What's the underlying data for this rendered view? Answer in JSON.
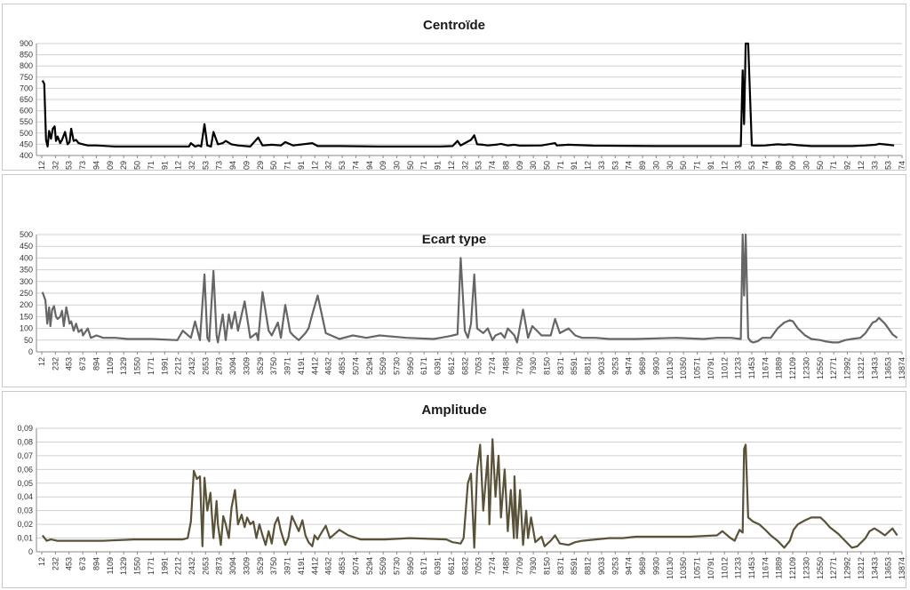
{
  "x_tick_labels": [
    "12",
    "232",
    "453",
    "673",
    "894",
    "1109",
    "1329",
    "1550",
    "1771",
    "1991",
    "2212",
    "2432",
    "2653",
    "2873",
    "3094",
    "3309",
    "3529",
    "3750",
    "3971",
    "4191",
    "4412",
    "4632",
    "4853",
    "5074",
    "5294",
    "5509",
    "5730",
    "5950",
    "6171",
    "6391",
    "6612",
    "6832",
    "7053",
    "7274",
    "7488",
    "7709",
    "7930",
    "8150",
    "8371",
    "8591",
    "8812",
    "9033",
    "9253",
    "9474",
    "9689",
    "9930",
    "10130",
    "10350",
    "10571",
    "10791",
    "11012",
    "11233",
    "11453",
    "11674",
    "11889",
    "12109",
    "12330",
    "12550",
    "12771",
    "12992",
    "13212",
    "13433",
    "13653",
    "13874"
  ],
  "chart_data": [
    {
      "type": "line",
      "title": "Centroïde",
      "xlabel": "",
      "ylabel": "",
      "ylim": [
        400,
        900
      ],
      "yticks": [
        "400",
        "450",
        "500",
        "550",
        "600",
        "650",
        "700",
        "750",
        "800",
        "850",
        "900"
      ],
      "grid": true,
      "color": "#000000",
      "x": [
        12,
        40,
        70,
        95,
        120,
        150,
        180,
        210,
        232,
        260,
        300,
        330,
        380,
        420,
        453,
        480,
        520,
        560,
        600,
        673,
        750,
        894,
        1200,
        1800,
        2300,
        2400,
        2432,
        2500,
        2560,
        2600,
        2653,
        2700,
        2760,
        2800,
        2873,
        2950,
        3000,
        3094,
        3200,
        3400,
        3529,
        3600,
        3750,
        3900,
        3971,
        4100,
        4412,
        4500,
        4853,
        5500,
        6500,
        6700,
        6780,
        6832,
        6900,
        7000,
        7053,
        7100,
        7200,
        7274,
        7400,
        7488,
        7600,
        7709,
        7800,
        8150,
        8371,
        8400,
        8591,
        9000,
        10000,
        11000,
        11233,
        11400,
        11430,
        11453,
        11480,
        11520,
        11580,
        11674,
        11800,
        12000,
        12109,
        12200,
        12330,
        12550,
        12771,
        12992,
        13212,
        13433,
        13600,
        13653,
        13800,
        13900
      ],
      "y": [
        735,
        720,
        470,
        440,
        510,
        475,
        520,
        530,
        465,
        485,
        455,
        470,
        505,
        450,
        460,
        520,
        465,
        470,
        455,
        450,
        445,
        445,
        440,
        440,
        440,
        440,
        455,
        440,
        445,
        440,
        540,
        445,
        440,
        505,
        450,
        455,
        465,
        450,
        445,
        440,
        480,
        445,
        448,
        445,
        460,
        445,
        455,
        442,
        442,
        440,
        440,
        442,
        465,
        445,
        455,
        470,
        490,
        450,
        448,
        445,
        448,
        452,
        445,
        448,
        444,
        445,
        455,
        445,
        448,
        444,
        442,
        442,
        442,
        442,
        780,
        540,
        900,
        900,
        445,
        444,
        445,
        450,
        448,
        450,
        446,
        442,
        442,
        442,
        442,
        445,
        448,
        452,
        448,
        445
      ],
      "xmax": 14000
    },
    {
      "type": "line",
      "title": "Ecart type",
      "xlabel": "",
      "ylabel": "",
      "ylim": [
        0,
        500
      ],
      "yticks": [
        "0",
        "50",
        "100",
        "150",
        "200",
        "250",
        "300",
        "350",
        "400",
        "450",
        "500"
      ],
      "grid": true,
      "color": "#666666",
      "x": [
        12,
        60,
        90,
        120,
        140,
        170,
        200,
        232,
        260,
        300,
        330,
        360,
        400,
        453,
        480,
        520,
        560,
        600,
        650,
        673,
        750,
        800,
        894,
        1000,
        1200,
        1400,
        1800,
        2212,
        2300,
        2432,
        2500,
        2580,
        2653,
        2700,
        2730,
        2800,
        2850,
        2873,
        2950,
        3000,
        3050,
        3094,
        3150,
        3200,
        3309,
        3400,
        3500,
        3529,
        3600,
        3700,
        3750,
        3850,
        3900,
        3971,
        4050,
        4100,
        4191,
        4300,
        4350,
        4412,
        4500,
        4632,
        4853,
        5074,
        5294,
        5509,
        5950,
        6391,
        6500,
        6612,
        6700,
        6780,
        6832,
        6900,
        6950,
        7000,
        7053,
        7100,
        7200,
        7274,
        7350,
        7400,
        7488,
        7550,
        7600,
        7709,
        7750,
        7850,
        7930,
        8000,
        8150,
        8300,
        8371,
        8450,
        8591,
        8700,
        8812,
        9033,
        9253,
        9689,
        10350,
        10791,
        11012,
        11233,
        11400,
        11430,
        11453,
        11480,
        11520,
        11560,
        11600,
        11674,
        11750,
        11889,
        12000,
        12109,
        12200,
        12250,
        12330,
        12450,
        12550,
        12700,
        12771,
        12900,
        12992,
        13100,
        13212,
        13350,
        13433,
        13550,
        13600,
        13653,
        13750,
        13874,
        13950
      ],
      "y": [
        255,
        220,
        120,
        190,
        110,
        180,
        195,
        150,
        140,
        150,
        175,
        110,
        190,
        120,
        130,
        90,
        120,
        85,
        95,
        70,
        100,
        60,
        70,
        60,
        60,
        55,
        55,
        50,
        90,
        60,
        130,
        50,
        330,
        60,
        45,
        345,
        70,
        40,
        160,
        50,
        160,
        100,
        170,
        90,
        215,
        60,
        80,
        50,
        255,
        90,
        70,
        125,
        60,
        200,
        85,
        70,
        50,
        80,
        100,
        160,
        240,
        80,
        55,
        70,
        60,
        70,
        60,
        55,
        60,
        65,
        70,
        75,
        400,
        90,
        60,
        120,
        330,
        100,
        80,
        100,
        50,
        70,
        80,
        60,
        100,
        70,
        40,
        180,
        60,
        110,
        70,
        70,
        140,
        80,
        100,
        70,
        60,
        60,
        55,
        55,
        60,
        55,
        60,
        60,
        55,
        500,
        240,
        500,
        60,
        45,
        40,
        45,
        60,
        60,
        100,
        125,
        135,
        130,
        100,
        70,
        55,
        50,
        45,
        40,
        40,
        50,
        55,
        60,
        80,
        125,
        130,
        145,
        120,
        75,
        60
      ],
      "xmax": 14000
    },
    {
      "type": "line",
      "title": "Amplitude",
      "xlabel": "",
      "ylabel": "",
      "ylim": [
        0,
        0.09
      ],
      "yticks": [
        "0",
        "0,01",
        "0,02",
        "0,03",
        "0,04",
        "0,05",
        "0,06",
        "0,07",
        "0,08",
        "0,09"
      ],
      "grid": true,
      "color": "#5a5238",
      "x": [
        12,
        80,
        150,
        250,
        400,
        600,
        800,
        1000,
        1500,
        2000,
        2212,
        2300,
        2380,
        2432,
        2480,
        2530,
        2580,
        2620,
        2653,
        2700,
        2750,
        2800,
        2850,
        2873,
        2920,
        2960,
        3000,
        3050,
        3094,
        3150,
        3200,
        3260,
        3309,
        3350,
        3400,
        3450,
        3500,
        3550,
        3600,
        3650,
        3700,
        3750,
        3800,
        3850,
        3900,
        3971,
        4020,
        4080,
        4191,
        4250,
        4300,
        4350,
        4412,
        4450,
        4500,
        4550,
        4632,
        4700,
        4853,
        5000,
        5200,
        5600,
        6000,
        6600,
        6700,
        6832,
        6880,
        6950,
        7000,
        7053,
        7100,
        7150,
        7200,
        7274,
        7300,
        7350,
        7400,
        7450,
        7488,
        7550,
        7600,
        7650,
        7700,
        7709,
        7750,
        7800,
        7850,
        7900,
        7930,
        7980,
        8050,
        8150,
        8200,
        8300,
        8371,
        8450,
        8591,
        8700,
        8812,
        9033,
        9253,
        9474,
        9689,
        10130,
        10571,
        11012,
        11100,
        11233,
        11300,
        11380,
        11430,
        11453,
        11480,
        11520,
        11600,
        11700,
        11800,
        11889,
        12000,
        12109,
        12200,
        12260,
        12330,
        12450,
        12550,
        12700,
        12771,
        12850,
        12992,
        13100,
        13212,
        13300,
        13433,
        13500,
        13580,
        13653,
        13750,
        13874,
        13950
      ],
      "y": [
        0.012,
        0.008,
        0.009,
        0.008,
        0.008,
        0.008,
        0.008,
        0.008,
        0.009,
        0.009,
        0.009,
        0.009,
        0.01,
        0.022,
        0.059,
        0.053,
        0.055,
        0.004,
        0.054,
        0.03,
        0.043,
        0.01,
        0.037,
        0.02,
        0.005,
        0.026,
        0.02,
        0.01,
        0.032,
        0.045,
        0.02,
        0.027,
        0.018,
        0.025,
        0.02,
        0.022,
        0.01,
        0.02,
        0.012,
        0.005,
        0.015,
        0.006,
        0.02,
        0.025,
        0.015,
        0.005,
        0.01,
        0.026,
        0.015,
        0.023,
        0.012,
        0.007,
        0.004,
        0.012,
        0.009,
        0.013,
        0.019,
        0.01,
        0.016,
        0.012,
        0.009,
        0.009,
        0.01,
        0.009,
        0.007,
        0.006,
        0.01,
        0.05,
        0.057,
        0.003,
        0.06,
        0.078,
        0.03,
        0.07,
        0.02,
        0.082,
        0.04,
        0.07,
        0.025,
        0.06,
        0.015,
        0.045,
        0.01,
        0.055,
        0.01,
        0.045,
        0.005,
        0.03,
        0.01,
        0.025,
        0.007,
        0.011,
        0.004,
        0.008,
        0.012,
        0.006,
        0.005,
        0.007,
        0.008,
        0.009,
        0.01,
        0.01,
        0.011,
        0.011,
        0.011,
        0.012,
        0.015,
        0.01,
        0.008,
        0.016,
        0.014,
        0.075,
        0.078,
        0.025,
        0.022,
        0.02,
        0.016,
        0.012,
        0.008,
        0.003,
        0.008,
        0.016,
        0.02,
        0.023,
        0.025,
        0.025,
        0.022,
        0.018,
        0.013,
        0.008,
        0.003,
        0.004,
        0.01,
        0.015,
        0.017,
        0.015,
        0.012,
        0.017,
        0.012
      ],
      "xmax": 14000
    }
  ]
}
